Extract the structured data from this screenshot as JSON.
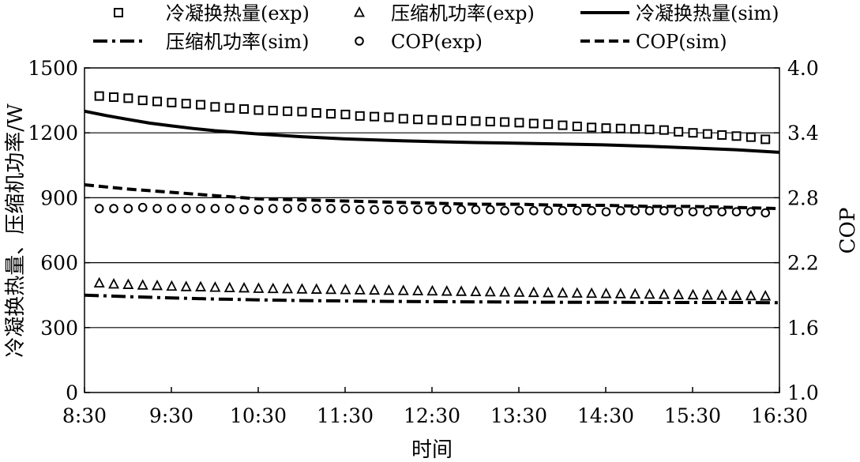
{
  "chart_data": {
    "type": "line",
    "xlabel": "时间",
    "ylabel_left": "冷凝换热量、压缩机功率/W",
    "ylabel_right": "COP",
    "x_ticks": [
      "8:30",
      "9:30",
      "10:30",
      "11:30",
      "12:30",
      "13:30",
      "14:30",
      "15:30",
      "16:30"
    ],
    "y_left_ticks": [
      "0",
      "300",
      "600",
      "900",
      "1200",
      "1500"
    ],
    "y_right_ticks": [
      "1.0",
      "1.6",
      "2.2",
      "2.8",
      "3.4",
      "4.0"
    ],
    "ylim_left": [
      0,
      1500
    ],
    "ylim_right": [
      1.0,
      4.0
    ],
    "grid": "horizontal",
    "legend_placement": "top",
    "legend": [
      {
        "label": "冷凝换热量(exp)",
        "marker": "square"
      },
      {
        "label": "压缩机功率(exp)",
        "marker": "triangle"
      },
      {
        "label": "冷凝换热量(sim)",
        "line": "solid"
      },
      {
        "label": "压缩机功率(sim)",
        "line": "dashdot"
      },
      {
        "label": "COP(exp)",
        "marker": "circle"
      },
      {
        "label": "COP(sim)",
        "line": "dashed"
      }
    ],
    "x_hours": [
      8.5,
      16.5
    ],
    "series": [
      {
        "name": "冷凝换热量(exp)",
        "axis": "left",
        "marker": "square",
        "x_start": 8.67,
        "x_step": 0.1667,
        "values": [
          1370,
          1365,
          1360,
          1350,
          1345,
          1340,
          1335,
          1330,
          1320,
          1315,
          1310,
          1305,
          1303,
          1300,
          1298,
          1292,
          1288,
          1285,
          1278,
          1275,
          1272,
          1265,
          1262,
          1260,
          1258,
          1256,
          1254,
          1252,
          1250,
          1247,
          1243,
          1240,
          1235,
          1230,
          1225,
          1222,
          1220,
          1218,
          1216,
          1213,
          1205,
          1200,
          1195,
          1190,
          1185,
          1180,
          1170,
          1165,
          1153
        ]
      },
      {
        "name": "压缩机功率(exp)",
        "axis": "left",
        "marker": "triangle",
        "x_start": 8.67,
        "x_step": 0.1667,
        "values": [
          505,
          500,
          498,
          495,
          493,
          490,
          488,
          487,
          485,
          483,
          482,
          480,
          479,
          478,
          477,
          476,
          475,
          474,
          473,
          472,
          471,
          470,
          469,
          468,
          467,
          466,
          465,
          464,
          463,
          462,
          461,
          460,
          459,
          458,
          457,
          456,
          455,
          454,
          453,
          452,
          451,
          450,
          449,
          448,
          447,
          446,
          445,
          444,
          443
        ]
      },
      {
        "name": "冷凝换热量(sim)",
        "axis": "left",
        "line": "solid",
        "x": [
          8.5,
          8.75,
          9.0,
          9.25,
          9.5,
          9.75,
          10.0,
          10.5,
          11.0,
          11.5,
          12.0,
          12.5,
          13.0,
          13.5,
          14.0,
          14.5,
          15.0,
          15.5,
          16.0,
          16.5
        ],
        "values": [
          1300,
          1280,
          1262,
          1245,
          1232,
          1220,
          1210,
          1195,
          1182,
          1172,
          1165,
          1160,
          1155,
          1152,
          1148,
          1144,
          1138,
          1130,
          1122,
          1110
        ]
      },
      {
        "name": "压缩机功率(sim)",
        "axis": "left",
        "line": "dashdot",
        "x": [
          8.5,
          9.0,
          9.5,
          10.0,
          10.5,
          11.0,
          11.5,
          12.0,
          12.5,
          13.0,
          13.5,
          14.0,
          14.5,
          15.0,
          15.5,
          16.0,
          16.5
        ],
        "values": [
          450,
          443,
          437,
          432,
          428,
          425,
          423,
          421,
          420,
          419,
          418,
          417,
          417,
          416,
          416,
          416,
          415
        ]
      },
      {
        "name": "COP(exp)",
        "axis": "right",
        "marker": "circle",
        "x_start": 8.67,
        "x_step": 0.1667,
        "values": [
          2.7,
          2.7,
          2.7,
          2.71,
          2.7,
          2.7,
          2.7,
          2.7,
          2.7,
          2.7,
          2.69,
          2.69,
          2.7,
          2.7,
          2.71,
          2.7,
          2.7,
          2.7,
          2.69,
          2.69,
          2.69,
          2.69,
          2.69,
          2.69,
          2.69,
          2.69,
          2.69,
          2.69,
          2.68,
          2.68,
          2.68,
          2.68,
          2.68,
          2.68,
          2.68,
          2.67,
          2.68,
          2.68,
          2.68,
          2.68,
          2.67,
          2.67,
          2.67,
          2.67,
          2.67,
          2.67,
          2.66,
          2.66,
          2.61
        ]
      },
      {
        "name": "COP(sim)",
        "axis": "right",
        "line": "dashed",
        "x": [
          8.5,
          9.0,
          9.5,
          10.0,
          10.5,
          11.0,
          11.5,
          12.0,
          12.5,
          13.0,
          13.5,
          14.0,
          14.5,
          15.0,
          15.5,
          16.0,
          16.5
        ],
        "values": [
          2.92,
          2.88,
          2.85,
          2.82,
          2.79,
          2.78,
          2.77,
          2.76,
          2.75,
          2.74,
          2.74,
          2.73,
          2.73,
          2.72,
          2.72,
          2.71,
          2.7
        ]
      }
    ]
  }
}
